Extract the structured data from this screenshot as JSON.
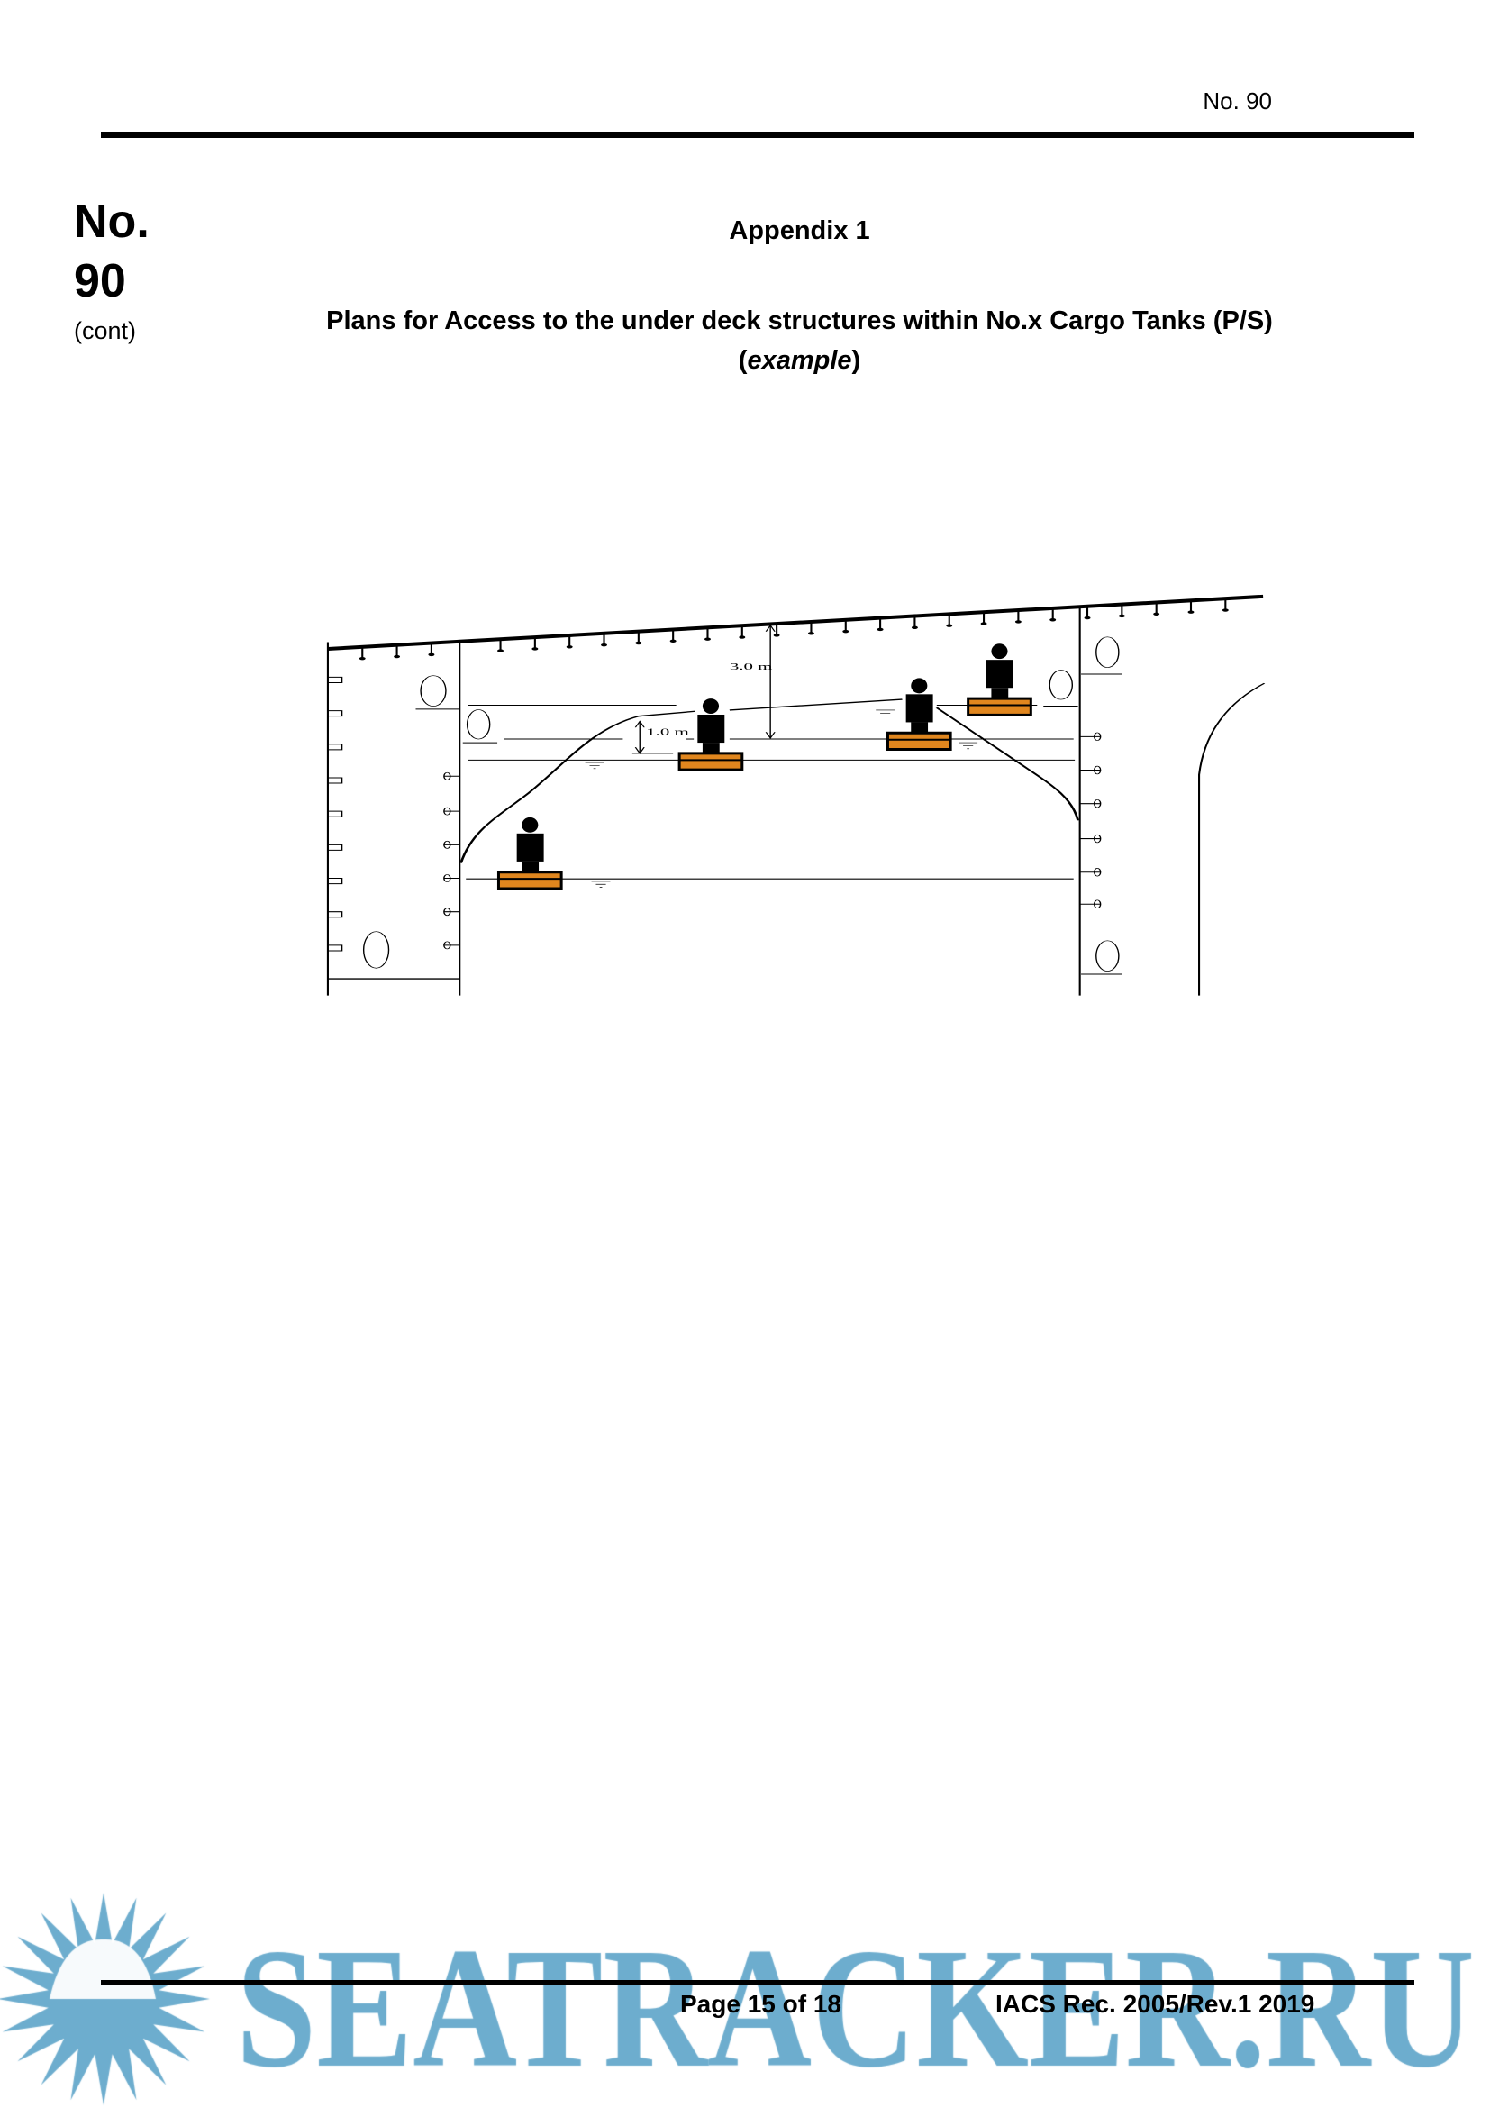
{
  "header": {
    "doc_number": "No. 90",
    "left_number_line1": "No.",
    "left_number_line2": "90",
    "left_cont": "(cont)"
  },
  "appendix": "Appendix 1",
  "title": "Plans for Access to the under deck structures within No.x Cargo Tanks (P/S)",
  "subtitle_open": "(",
  "subtitle_italic": "example",
  "subtitle_close": ")",
  "diagram": {
    "dimension_upper": "3.0 m",
    "dimension_lower": "1.0 m",
    "platform_color": "#e0861e"
  },
  "footer": {
    "page": "Page 15 of 18",
    "reference": "IACS Rec. 2005/Rev.1 2019"
  },
  "watermark": {
    "text": "SEATRACKER.RU",
    "color": "#65a9cb"
  }
}
